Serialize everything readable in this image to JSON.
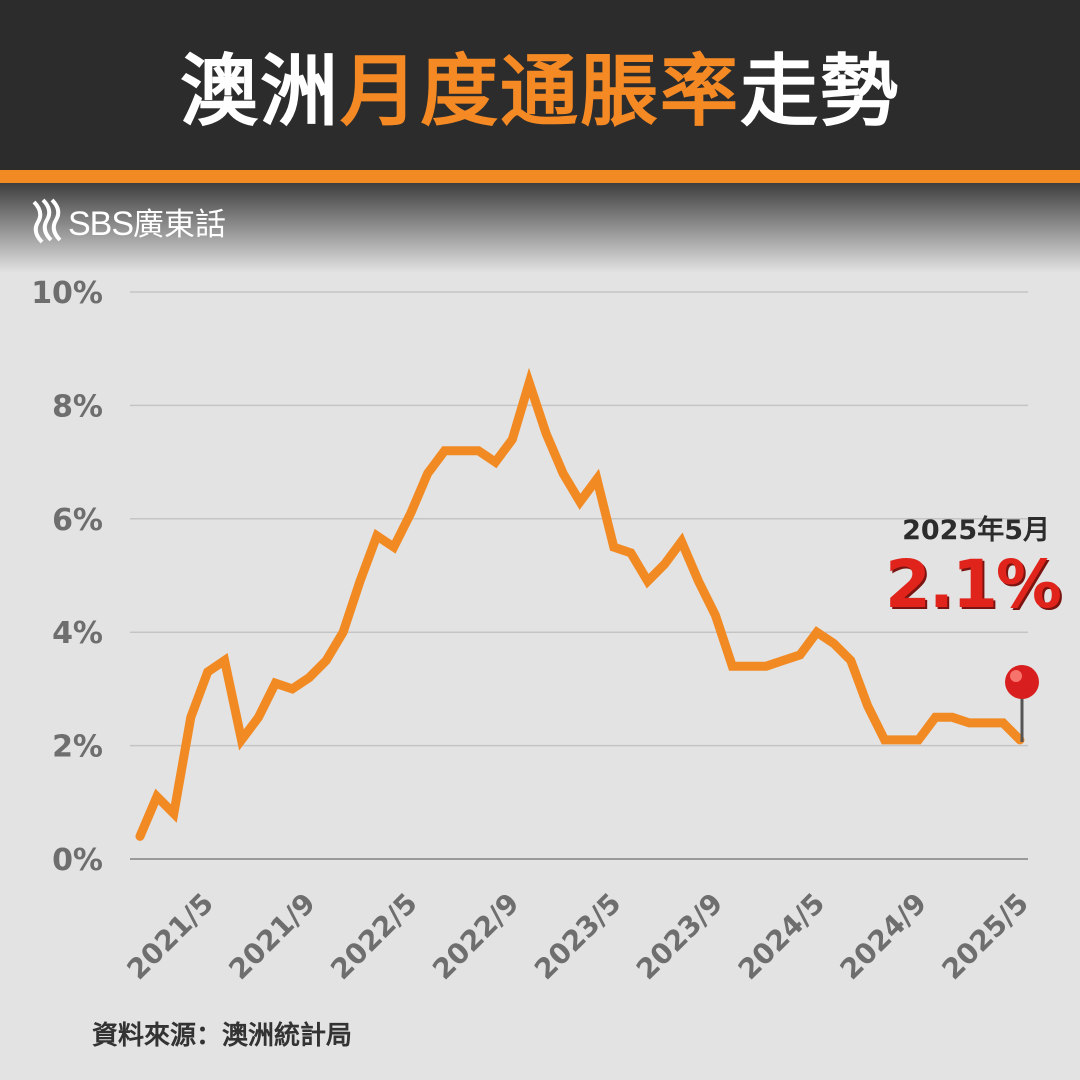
{
  "header": {
    "title_part1": "澳洲",
    "title_part2": "月度通脹率",
    "title_part3": "走勢"
  },
  "logo": {
    "brand": "SBS",
    "suffix": "廣東話",
    "icon": "sbs-waves-icon"
  },
  "source": "資料來源：澳洲統計局",
  "annotation": {
    "date": "2025年5月",
    "value": "2.1%",
    "icon": "red-pushpin-icon"
  },
  "colors": {
    "line": "#f28a24",
    "header_bg": "#2c2c2c",
    "accent": "#f58a25",
    "highlight": "#e0231b",
    "background": "#e3e3e3"
  },
  "chart_data": {
    "type": "line",
    "title": "澳洲月度通脹率走勢",
    "xlabel": "",
    "ylabel": "",
    "ylim": [
      0,
      10
    ],
    "yticks": [
      "0%",
      "2%",
      "4%",
      "6%",
      "8%",
      "10%"
    ],
    "xticks": [
      "2021/5",
      "2021/9",
      "2022/5",
      "2022/9",
      "2023/5",
      "2023/9",
      "2024/5",
      "2024/9",
      "2025/5"
    ],
    "grid": true,
    "series": [
      {
        "values": [
          0.4,
          1.1,
          0.8,
          2.5,
          3.3,
          3.5,
          2.1,
          2.5,
          3.1,
          3.0,
          3.2,
          3.5,
          4.0,
          4.9,
          5.7,
          5.5,
          6.1,
          6.8,
          7.2,
          7.2,
          7.2,
          7.0,
          7.4,
          8.4,
          7.5,
          6.8,
          6.3,
          6.7,
          5.5,
          5.4,
          4.9,
          5.2,
          5.6,
          4.9,
          4.3,
          3.4,
          3.4,
          3.4,
          3.5,
          3.6,
          4.0,
          3.8,
          3.5,
          2.7,
          2.1,
          2.1,
          2.1,
          2.5,
          2.5,
          2.4,
          2.4,
          2.4,
          2.1
        ]
      }
    ]
  }
}
